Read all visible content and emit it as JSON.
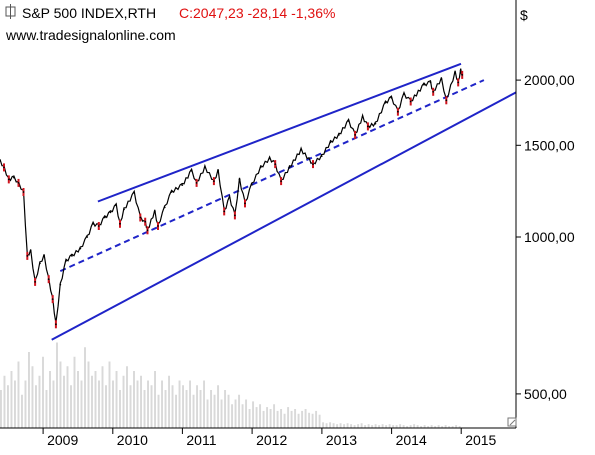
{
  "header": {
    "instrument": "S&P 500 INDEX,RTH",
    "quote": "C:2047,23 -28,14 -1,36%",
    "website": "www.tradesignalonline.com",
    "currency_symbol": "$"
  },
  "colors": {
    "price_line": "#000000",
    "down_candle": "#d0141e",
    "channel": "#1f24c8",
    "quote_text": "#e01010",
    "volume": "#d9d9d9",
    "axis": "#000000"
  },
  "chart_data": {
    "type": "line",
    "title": "S&P 500 INDEX,RTH",
    "subtitle": "C:2047,23 -28,14 -1,36%",
    "xlabel": "",
    "ylabel": "$",
    "y_scale": "log",
    "ylim": [
      430,
      2850
    ],
    "xlim": [
      "2008-05-20",
      "2015-10-15"
    ],
    "x_ticks": [
      "2009",
      "2010",
      "2011",
      "2012",
      "2013",
      "2014",
      "2015"
    ],
    "y_ticks": [
      "500,00",
      "1000,00",
      "1500,00",
      "2000,00"
    ],
    "y_tick_values": [
      500,
      1000,
      1500,
      2000
    ],
    "grid": false,
    "legend": "none",
    "series": [
      {
        "kind": "close",
        "x": [
          "2008-05-20",
          "2008-06-10",
          "2008-07-05",
          "2008-08-01",
          "2008-08-25",
          "2008-09-20",
          "2008-10-10",
          "2008-10-28",
          "2008-11-20",
          "2008-12-15",
          "2009-01-06",
          "2009-01-30",
          "2009-02-20",
          "2009-03-09",
          "2009-04-01",
          "2009-05-01",
          "2009-06-01",
          "2009-07-15",
          "2009-08-20",
          "2009-09-20",
          "2009-10-20",
          "2009-11-20",
          "2009-12-20",
          "2010-01-19",
          "2010-02-08",
          "2010-03-01",
          "2010-04-23",
          "2010-05-25",
          "2010-06-20",
          "2010-07-02",
          "2010-08-09",
          "2010-08-26",
          "2010-09-30",
          "2010-11-05",
          "2010-12-31",
          "2011-02-18",
          "2011-03-16",
          "2011-04-29",
          "2011-06-15",
          "2011-07-07",
          "2011-08-08",
          "2011-09-05",
          "2011-10-03",
          "2011-10-27",
          "2011-11-25",
          "2011-12-30",
          "2012-02-15",
          "2012-04-02",
          "2012-05-01",
          "2012-06-01",
          "2012-07-15",
          "2012-09-14",
          "2012-11-15",
          "2012-12-31",
          "2013-02-15",
          "2013-03-31",
          "2013-05-21",
          "2013-06-24",
          "2013-08-02",
          "2013-08-30",
          "2013-10-08",
          "2013-11-30",
          "2013-12-31",
          "2014-02-03",
          "2014-03-07",
          "2014-04-11",
          "2014-06-20",
          "2014-07-24",
          "2014-08-07",
          "2014-09-19",
          "2014-10-15",
          "2014-11-30",
          "2014-12-16",
          "2014-12-29",
          "2015-01-06"
        ],
        "values": [
          1400,
          1360,
          1290,
          1300,
          1270,
          1220,
          920,
          940,
          820,
          890,
          920,
          830,
          760,
          680,
          810,
          900,
          920,
          950,
          1000,
          1060,
          1050,
          1090,
          1115,
          1150,
          1060,
          1130,
          1215,
          1090,
          1070,
          1030,
          1120,
          1050,
          1140,
          1220,
          1258,
          1340,
          1270,
          1360,
          1280,
          1340,
          1120,
          1190,
          1100,
          1290,
          1160,
          1260,
          1360,
          1415,
          1380,
          1280,
          1360,
          1470,
          1380,
          1430,
          1520,
          1570,
          1670,
          1570,
          1700,
          1630,
          1650,
          1810,
          1850,
          1740,
          1880,
          1820,
          1960,
          1980,
          1900,
          2010,
          1830,
          2070,
          1980,
          2090,
          2047
        ]
      }
    ],
    "volume_series": {
      "kind": "volume",
      "x_start": "2008-05-20",
      "x_end": "2015-01-06",
      "relative_values": [
        0.4,
        0.55,
        0.45,
        0.6,
        0.5,
        0.7,
        0.35,
        0.5,
        0.8,
        0.65,
        0.45,
        0.55,
        0.75,
        0.4,
        0.6,
        0.5,
        0.9,
        0.7,
        0.55,
        0.65,
        0.45,
        0.75,
        0.6,
        0.5,
        0.85,
        0.7,
        0.55,
        0.6,
        0.5,
        0.65,
        0.45,
        0.7,
        0.5,
        0.6,
        0.4,
        0.55,
        0.65,
        0.45,
        0.6,
        0.5,
        0.55,
        0.4,
        0.5,
        0.45,
        0.6,
        0.35,
        0.5,
        0.4,
        0.55,
        0.45,
        0.35,
        0.5,
        0.45,
        0.4,
        0.5,
        0.35,
        0.45,
        0.4,
        0.5,
        0.3,
        0.4,
        0.35,
        0.45,
        0.3,
        0.4,
        0.35,
        0.25,
        0.3,
        0.35,
        0.25,
        0.3,
        0.2,
        0.28,
        0.22,
        0.25,
        0.18,
        0.22,
        0.2,
        0.25,
        0.18,
        0.2,
        0.15,
        0.22,
        0.18,
        0.2,
        0.15,
        0.18,
        0.2,
        0.16,
        0.15,
        0.18,
        0.14,
        0.06,
        0.05,
        0.06,
        0.05,
        0.04,
        0.05,
        0.04,
        0.05,
        0.04,
        0.03,
        0.04,
        0.05,
        0.03,
        0.04,
        0.03,
        0.04,
        0.03,
        0.04,
        0.03,
        0.04,
        0.03,
        0.03,
        0.04,
        0.03,
        0.02,
        0.03,
        0.04,
        0.03,
        0.02,
        0.03,
        0.02,
        0.03,
        0.02,
        0.03,
        0.02,
        0.03,
        0.02,
        0.02,
        0.03,
        0.02
      ]
    },
    "channel": {
      "upper": {
        "x": [
          "2009-10-15",
          "2014-12-31"
        ],
        "y": [
          1170,
          2150
        ]
      },
      "middle": {
        "x": [
          "2009-04-01",
          "2015-04-30"
        ],
        "y": [
          860,
          2000
        ]
      },
      "lower": {
        "x": [
          "2009-02-15",
          "2015-10-15"
        ],
        "y": [
          635,
          1895
        ]
      }
    }
  },
  "footer": {
    "corner_icon": "resize-grip-icon"
  }
}
